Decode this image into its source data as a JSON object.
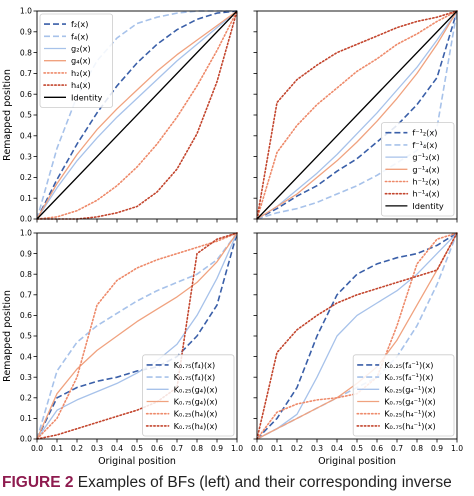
{
  "figure": {
    "caption_label": "FIGURE 2",
    "caption_text": " Examples of BFs (left) and their corresponding inverse"
  },
  "colors": {
    "blue_dark": "#3a5fa8",
    "blue_light": "#a7c2ea",
    "orange_mid": "#f0a27f",
    "red_dark": "#c3452d",
    "orange_dotted": "#ee8a6a",
    "identity": "#000000",
    "caption_accent": "#8e1b4f"
  },
  "chart_data": [
    {
      "type": "line",
      "panel": "top-left",
      "xlabel": "",
      "ylabel": "Remapped position",
      "xlim": [
        0,
        1
      ],
      "ylim": [
        0,
        1
      ],
      "xticks": [
        "0.0",
        "0.1",
        "0.2",
        "0.3",
        "0.4",
        "0.5",
        "0.6",
        "0.7",
        "0.8",
        "0.9",
        "1.0"
      ],
      "yticks": [
        "0.0",
        "0.1",
        "0.2",
        "0.3",
        "0.4",
        "0.5",
        "0.6",
        "0.7",
        "0.8",
        "0.9",
        "1.0"
      ],
      "show_xtick_labels": false,
      "show_ytick_labels": true,
      "legend_position": "top-left",
      "grid": false,
      "series": [
        {
          "name": "f₂(x)",
          "color_key": "blue_dark",
          "style": "dashed",
          "x": [
            0,
            0.1,
            0.2,
            0.3,
            0.4,
            0.5,
            0.6,
            0.7,
            0.8,
            0.9,
            1.0
          ],
          "y": [
            0,
            0.19,
            0.36,
            0.51,
            0.64,
            0.75,
            0.84,
            0.91,
            0.96,
            0.99,
            1.0
          ]
        },
        {
          "name": "f₄(x)",
          "color_key": "blue_light",
          "style": "dashed",
          "x": [
            0,
            0.1,
            0.2,
            0.3,
            0.4,
            0.5,
            0.6,
            0.7,
            0.8,
            0.9,
            1.0
          ],
          "y": [
            0,
            0.34,
            0.59,
            0.76,
            0.87,
            0.94,
            0.97,
            0.99,
            1.0,
            1.0,
            1.0
          ]
        },
        {
          "name": "g₂(x)",
          "color_key": "blue_light",
          "style": "solid",
          "x": [
            0,
            0.1,
            0.2,
            0.3,
            0.4,
            0.5,
            0.6,
            0.7,
            0.8,
            0.9,
            1.0
          ],
          "y": [
            0,
            0.15,
            0.28,
            0.39,
            0.49,
            0.58,
            0.67,
            0.76,
            0.84,
            0.92,
            1.0
          ]
        },
        {
          "name": "g₄(x)",
          "color_key": "orange_mid",
          "style": "solid",
          "x": [
            0,
            0.1,
            0.2,
            0.3,
            0.4,
            0.5,
            0.6,
            0.7,
            0.8,
            0.9,
            1.0
          ],
          "y": [
            0,
            0.17,
            0.31,
            0.43,
            0.53,
            0.62,
            0.71,
            0.79,
            0.86,
            0.93,
            1.0
          ]
        },
        {
          "name": "h₂(x)",
          "color_key": "orange_dotted",
          "style": "dotted",
          "x": [
            0,
            0.1,
            0.2,
            0.3,
            0.4,
            0.5,
            0.6,
            0.7,
            0.8,
            0.9,
            1.0
          ],
          "y": [
            0,
            0.01,
            0.04,
            0.09,
            0.16,
            0.25,
            0.36,
            0.49,
            0.64,
            0.81,
            1.0
          ]
        },
        {
          "name": "h₄(x)",
          "color_key": "red_dark",
          "style": "dotted",
          "x": [
            0,
            0.1,
            0.2,
            0.3,
            0.4,
            0.5,
            0.6,
            0.7,
            0.8,
            0.9,
            1.0
          ],
          "y": [
            0,
            0.0,
            0.0,
            0.01,
            0.03,
            0.06,
            0.13,
            0.24,
            0.41,
            0.66,
            1.0
          ]
        },
        {
          "name": "Identity",
          "color_key": "identity",
          "style": "solid",
          "x": [
            0,
            1.0
          ],
          "y": [
            0,
            1.0
          ]
        }
      ]
    },
    {
      "type": "line",
      "panel": "top-right",
      "xlabel": "",
      "ylabel": "",
      "xlim": [
        0,
        1
      ],
      "ylim": [
        0,
        1
      ],
      "xticks": [
        "0.0",
        "0.1",
        "0.2",
        "0.3",
        "0.4",
        "0.5",
        "0.6",
        "0.7",
        "0.8",
        "0.9",
        "1.0"
      ],
      "yticks": [
        "0.0",
        "0.1",
        "0.2",
        "0.3",
        "0.4",
        "0.5",
        "0.6",
        "0.7",
        "0.8",
        "0.9",
        "1.0"
      ],
      "show_xtick_labels": false,
      "show_ytick_labels": false,
      "legend_position": "bottom-right",
      "grid": false,
      "series": [
        {
          "name": "f⁻¹₂(x)",
          "color_key": "blue_dark",
          "style": "dashed",
          "x": [
            0,
            0.1,
            0.2,
            0.3,
            0.4,
            0.5,
            0.6,
            0.7,
            0.8,
            0.9,
            1.0
          ],
          "y": [
            0,
            0.05,
            0.11,
            0.16,
            0.23,
            0.29,
            0.37,
            0.45,
            0.55,
            0.68,
            1.0
          ]
        },
        {
          "name": "f⁻¹₄(x)",
          "color_key": "blue_light",
          "style": "dashed",
          "x": [
            0,
            0.1,
            0.2,
            0.3,
            0.4,
            0.5,
            0.6,
            0.7,
            0.8,
            0.9,
            1.0
          ],
          "y": [
            0,
            0.03,
            0.05,
            0.08,
            0.12,
            0.16,
            0.21,
            0.27,
            0.33,
            0.44,
            1.0
          ]
        },
        {
          "name": "g⁻¹₂(x)",
          "color_key": "blue_light",
          "style": "solid",
          "x": [
            0,
            0.1,
            0.2,
            0.3,
            0.4,
            0.5,
            0.6,
            0.7,
            0.8,
            0.9,
            1.0
          ],
          "y": [
            0,
            0.06,
            0.14,
            0.22,
            0.31,
            0.41,
            0.51,
            0.62,
            0.73,
            0.86,
            1.0
          ]
        },
        {
          "name": "g⁻¹₄(x)",
          "color_key": "orange_mid",
          "style": "solid",
          "x": [
            0,
            0.1,
            0.2,
            0.3,
            0.4,
            0.5,
            0.6,
            0.7,
            0.8,
            0.9,
            1.0
          ],
          "y": [
            0,
            0.06,
            0.12,
            0.2,
            0.28,
            0.37,
            0.47,
            0.58,
            0.7,
            0.84,
            1.0
          ]
        },
        {
          "name": "h⁻¹₂(x)",
          "color_key": "orange_dotted",
          "style": "dotted",
          "x": [
            0,
            0.1,
            0.2,
            0.3,
            0.4,
            0.5,
            0.6,
            0.7,
            0.8,
            0.9,
            1.0
          ],
          "y": [
            0,
            0.32,
            0.45,
            0.55,
            0.63,
            0.71,
            0.77,
            0.84,
            0.89,
            0.95,
            1.0
          ]
        },
        {
          "name": "h⁻¹₄(x)",
          "color_key": "red_dark",
          "style": "dotted",
          "x": [
            0,
            0.1,
            0.2,
            0.3,
            0.4,
            0.5,
            0.6,
            0.7,
            0.8,
            0.9,
            1.0
          ],
          "y": [
            0,
            0.56,
            0.67,
            0.74,
            0.8,
            0.84,
            0.88,
            0.92,
            0.95,
            0.97,
            1.0
          ]
        },
        {
          "name": "Identity",
          "color_key": "identity",
          "style": "solid",
          "x": [
            0,
            1.0
          ],
          "y": [
            0,
            1.0
          ]
        }
      ]
    },
    {
      "type": "line",
      "panel": "bottom-left",
      "xlabel": "Original position",
      "ylabel": "Remapped position",
      "xlim": [
        0,
        1
      ],
      "ylim": [
        0,
        1
      ],
      "xticks": [
        "0.0",
        "0.1",
        "0.2",
        "0.3",
        "0.4",
        "0.5",
        "0.6",
        "0.7",
        "0.8",
        "0.9",
        "1.0"
      ],
      "yticks": [
        "0.0",
        "0.1",
        "0.2",
        "0.3",
        "0.4",
        "0.5",
        "0.6",
        "0.7",
        "0.8",
        "0.9",
        "1.0"
      ],
      "show_xtick_labels": true,
      "show_ytick_labels": true,
      "legend_position": "bottom-right",
      "grid": false,
      "series": [
        {
          "name": "K₀.₇₅(f₄)(x)",
          "color_key": "blue_dark",
          "style": "dashed",
          "x": [
            0,
            0.1,
            0.2,
            0.3,
            0.4,
            0.5,
            0.6,
            0.7,
            0.8,
            0.9,
            1.0
          ],
          "y": [
            0,
            0.2,
            0.25,
            0.28,
            0.3,
            0.33,
            0.35,
            0.4,
            0.5,
            0.65,
            1.0
          ]
        },
        {
          "name": "K₀.₇₅(f₄)(x)",
          "color_key": "blue_light",
          "style": "dashed",
          "x": [
            0,
            0.1,
            0.2,
            0.3,
            0.4,
            0.5,
            0.6,
            0.7,
            0.8,
            0.9,
            1.0
          ],
          "y": [
            0,
            0.33,
            0.47,
            0.55,
            0.61,
            0.67,
            0.72,
            0.76,
            0.8,
            0.87,
            1.0
          ]
        },
        {
          "name": "K₀.₂₅(g₄)(x)",
          "color_key": "blue_light",
          "style": "solid",
          "x": [
            0,
            0.1,
            0.2,
            0.3,
            0.4,
            0.5,
            0.6,
            0.7,
            0.8,
            0.9,
            1.0
          ],
          "y": [
            0,
            0.14,
            0.19,
            0.23,
            0.27,
            0.32,
            0.38,
            0.46,
            0.6,
            0.78,
            1.0
          ]
        },
        {
          "name": "K₀.₇₅(g₄)(x)",
          "color_key": "orange_mid",
          "style": "solid",
          "x": [
            0,
            0.1,
            0.2,
            0.3,
            0.4,
            0.5,
            0.6,
            0.7,
            0.8,
            0.9,
            1.0
          ],
          "y": [
            0,
            0.22,
            0.34,
            0.43,
            0.5,
            0.57,
            0.63,
            0.69,
            0.76,
            0.86,
            1.0
          ]
        },
        {
          "name": "K₀.₂₅(h₄)(x)",
          "color_key": "orange_dotted",
          "style": "dotted",
          "x": [
            0,
            0.1,
            0.2,
            0.3,
            0.4,
            0.5,
            0.6,
            0.7,
            0.8,
            0.9,
            1.0
          ],
          "y": [
            0,
            0.1,
            0.3,
            0.65,
            0.77,
            0.83,
            0.87,
            0.9,
            0.93,
            0.96,
            1.0
          ]
        },
        {
          "name": "K₀.₇₅(h₄)(x)",
          "color_key": "red_dark",
          "style": "dotted",
          "x": [
            0,
            0.1,
            0.2,
            0.3,
            0.4,
            0.5,
            0.6,
            0.7,
            0.8,
            0.9,
            1.0
          ],
          "y": [
            0,
            0.02,
            0.05,
            0.08,
            0.11,
            0.14,
            0.18,
            0.25,
            0.9,
            0.97,
            1.0
          ]
        }
      ]
    },
    {
      "type": "line",
      "panel": "bottom-right",
      "xlabel": "Original position",
      "ylabel": "",
      "xlim": [
        0,
        1
      ],
      "ylim": [
        0,
        1
      ],
      "xticks": [
        "0.0",
        "0.1",
        "0.2",
        "0.3",
        "0.4",
        "0.5",
        "0.6",
        "0.7",
        "0.8",
        "0.9",
        "1.0"
      ],
      "yticks": [
        "0.0",
        "0.1",
        "0.2",
        "0.3",
        "0.4",
        "0.5",
        "0.6",
        "0.7",
        "0.8",
        "0.9",
        "1.0"
      ],
      "show_xtick_labels": true,
      "show_ytick_labels": false,
      "legend_position": "bottom-right",
      "grid": false,
      "series": [
        {
          "name": "K₀.₂₅(f₄⁻¹)(x)",
          "color_key": "blue_dark",
          "style": "dashed",
          "x": [
            0,
            0.1,
            0.2,
            0.3,
            0.4,
            0.5,
            0.6,
            0.7,
            0.8,
            0.9,
            1.0
          ],
          "y": [
            0,
            0.1,
            0.25,
            0.5,
            0.7,
            0.8,
            0.85,
            0.88,
            0.9,
            0.94,
            1.0
          ]
        },
        {
          "name": "K₀.₇₅(f₄⁻¹)(x)",
          "color_key": "blue_light",
          "style": "dashed",
          "x": [
            0,
            0.1,
            0.2,
            0.3,
            0.4,
            0.5,
            0.6,
            0.7,
            0.8,
            0.9,
            1.0
          ],
          "y": [
            0,
            0.05,
            0.1,
            0.15,
            0.2,
            0.25,
            0.3,
            0.4,
            0.55,
            0.75,
            1.0
          ]
        },
        {
          "name": "K₀.₂₅(g₄⁻¹)(x)",
          "color_key": "blue_light",
          "style": "solid",
          "x": [
            0,
            0.1,
            0.2,
            0.3,
            0.4,
            0.5,
            0.6,
            0.7,
            0.8,
            0.9,
            1.0
          ],
          "y": [
            0,
            0.05,
            0.12,
            0.3,
            0.5,
            0.6,
            0.66,
            0.72,
            0.8,
            0.9,
            1.0
          ]
        },
        {
          "name": "K₀.₇₅(g₄⁻¹)(x)",
          "color_key": "orange_mid",
          "style": "solid",
          "x": [
            0,
            0.1,
            0.2,
            0.3,
            0.4,
            0.5,
            0.6,
            0.7,
            0.8,
            0.9,
            1.0
          ],
          "y": [
            0,
            0.05,
            0.1,
            0.15,
            0.2,
            0.27,
            0.35,
            0.48,
            0.65,
            0.82,
            1.0
          ]
        },
        {
          "name": "K₀.₂₅(h₄⁻¹)(x)",
          "color_key": "orange_dotted",
          "style": "dotted",
          "x": [
            0,
            0.1,
            0.2,
            0.3,
            0.4,
            0.5,
            0.6,
            0.7,
            0.8,
            0.9,
            1.0
          ],
          "y": [
            0,
            0.13,
            0.17,
            0.19,
            0.2,
            0.22,
            0.3,
            0.55,
            0.85,
            0.97,
            1.0
          ]
        },
        {
          "name": "K₀.₇₅(h₄⁻¹)(x)",
          "color_key": "red_dark",
          "style": "dotted",
          "x": [
            0,
            0.1,
            0.2,
            0.3,
            0.4,
            0.5,
            0.6,
            0.7,
            0.8,
            0.9,
            1.0
          ],
          "y": [
            0,
            0.42,
            0.53,
            0.6,
            0.66,
            0.7,
            0.73,
            0.76,
            0.79,
            0.82,
            1.0
          ]
        }
      ]
    }
  ]
}
